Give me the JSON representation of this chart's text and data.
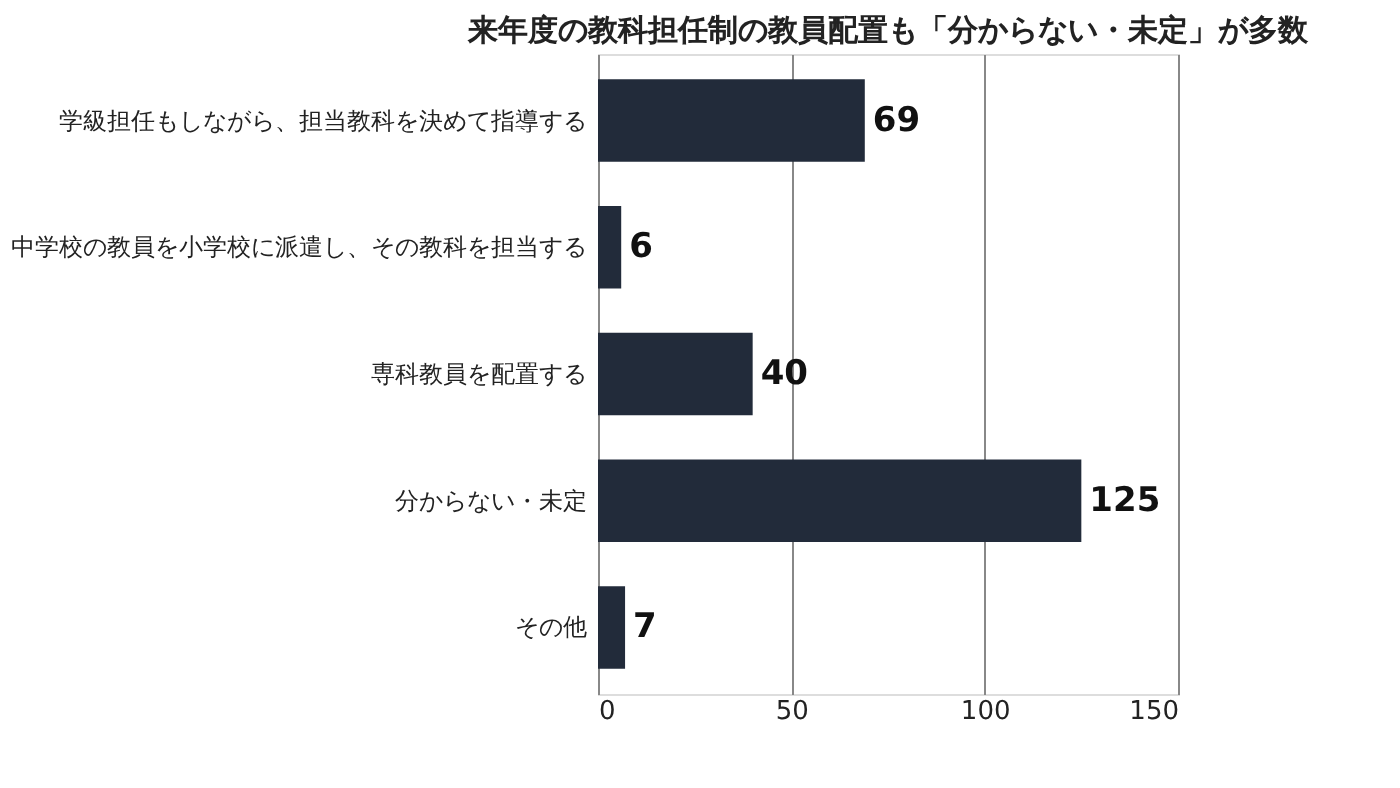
{
  "chart_data": {
    "type": "bar",
    "orientation": "horizontal",
    "title": "来年度の教科担任制の教員配置も「分からない・未定」が多数",
    "categories": [
      "学級担任もしながら、担当教科を決めて指導する",
      "中学校の教員を小学校に派遣し、その教科を担当する",
      "専科教員を配置する",
      "分からない・未定",
      "その他"
    ],
    "values": [
      69,
      6,
      40,
      125,
      7
    ],
    "color": "#222b3a",
    "xlim": [
      0,
      150
    ],
    "xticks": [
      0,
      50,
      100,
      150
    ],
    "grid": "x",
    "data_labels": true
  }
}
